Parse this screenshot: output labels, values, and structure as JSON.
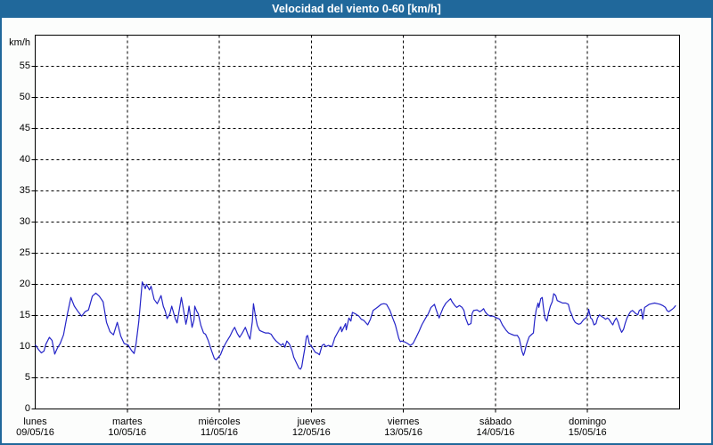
{
  "window": {
    "title": "Velocidad del viento 0-60 [km/h]"
  },
  "colors": {
    "titlebar_bg": "#20689B",
    "window_border": "#20689B",
    "content_bg": "#FCFDFC",
    "plot_bg": "#FFFFFF",
    "axis": "#000000",
    "grid": "#000000",
    "line": "#2424C8",
    "title_text": "#FFFFFF",
    "label_text": "#000000"
  },
  "chart_data": {
    "type": "line",
    "title": "Velocidad del viento 0-60 [km/h]",
    "ylabel": "km/h",
    "xlabel": "",
    "ylim": [
      0,
      60
    ],
    "xlim_hours": [
      0,
      168
    ],
    "y_ticks": [
      0,
      5,
      10,
      15,
      20,
      25,
      30,
      35,
      40,
      45,
      50,
      55
    ],
    "grid": "dashed",
    "legend_position": "none",
    "x_ticks": [
      {
        "hour": 0,
        "day": "lunes",
        "date": "09/05/16"
      },
      {
        "hour": 24,
        "day": "martes",
        "date": "10/05/16"
      },
      {
        "hour": 48,
        "day": "miércoles",
        "date": "11/05/16"
      },
      {
        "hour": 72,
        "day": "jueves",
        "date": "12/05/16"
      },
      {
        "hour": 96,
        "day": "viernes",
        "date": "13/05/16"
      },
      {
        "hour": 120,
        "day": "sábado",
        "date": "14/05/16"
      },
      {
        "hour": 144,
        "day": "domingo",
        "date": "15/05/16"
      }
    ],
    "series": [
      {
        "name": "velocidad del viento",
        "color": "#2424C8",
        "points": [
          [
            0,
            10.3
          ],
          [
            0.9,
            9.5
          ],
          [
            1.6,
            9.0
          ],
          [
            2.3,
            9.3
          ],
          [
            2.8,
            10.4
          ],
          [
            3.7,
            11.5
          ],
          [
            4.4,
            11.0
          ],
          [
            5.1,
            8.8
          ],
          [
            5.8,
            9.8
          ],
          [
            6.5,
            10.5
          ],
          [
            7.4,
            11.9
          ],
          [
            8.4,
            15.3
          ],
          [
            9.3,
            17.9
          ],
          [
            10.2,
            16.5
          ],
          [
            11.2,
            15.6
          ],
          [
            12.1,
            14.9
          ],
          [
            13,
            15.6
          ],
          [
            13.9,
            15.9
          ],
          [
            14.9,
            18.1
          ],
          [
            15.8,
            18.6
          ],
          [
            16.7,
            18.1
          ],
          [
            17.7,
            17.2
          ],
          [
            18.6,
            13.9
          ],
          [
            19.5,
            12.4
          ],
          [
            20.4,
            11.9
          ],
          [
            21.4,
            13.9
          ],
          [
            22.3,
            11.7
          ],
          [
            23.2,
            10.5
          ],
          [
            24.2,
            10.3
          ],
          [
            25.1,
            9.4
          ],
          [
            25.8,
            8.9
          ],
          [
            26.3,
            10.5
          ],
          [
            27,
            14
          ],
          [
            27.9,
            20.4
          ],
          [
            28.7,
            19.3
          ],
          [
            29,
            20
          ],
          [
            29.8,
            19.1
          ],
          [
            30.2,
            19.7
          ],
          [
            31,
            17.6
          ],
          [
            31.8,
            16.9
          ],
          [
            32.8,
            18.2
          ],
          [
            33.4,
            16.5
          ],
          [
            33.9,
            15.7
          ],
          [
            34.4,
            14.5
          ],
          [
            35.1,
            15.3
          ],
          [
            35.6,
            16.5
          ],
          [
            36.5,
            14.5
          ],
          [
            37,
            13.8
          ],
          [
            37.9,
            17.1
          ],
          [
            38.1,
            17.9
          ],
          [
            38.6,
            16.2
          ],
          [
            39.3,
            13.6
          ],
          [
            39.7,
            14.8
          ],
          [
            40.1,
            16.5
          ],
          [
            40.9,
            13.1
          ],
          [
            41.4,
            14.3
          ],
          [
            41.6,
            16.5
          ],
          [
            42.1,
            15.7
          ],
          [
            42.5,
            15.3
          ],
          [
            43.2,
            13.4
          ],
          [
            43.9,
            12.2
          ],
          [
            44.4,
            12
          ],
          [
            45.1,
            11
          ],
          [
            46,
            9.3
          ],
          [
            46.7,
            8.1
          ],
          [
            47.2,
            7.9
          ],
          [
            47.9,
            8.4
          ],
          [
            48.3,
            8.7
          ],
          [
            49,
            9.8
          ],
          [
            49.9,
            10.8
          ],
          [
            50.8,
            11.7
          ],
          [
            51.5,
            12.6
          ],
          [
            52,
            13.1
          ],
          [
            52.7,
            12.1
          ],
          [
            53.3,
            11.5
          ],
          [
            54.1,
            12.3
          ],
          [
            54.8,
            13.1
          ],
          [
            55.5,
            11.9
          ],
          [
            56,
            11.2
          ],
          [
            56.6,
            14
          ],
          [
            56.9,
            16.9
          ],
          [
            57.5,
            14.6
          ],
          [
            57.9,
            13.4
          ],
          [
            58.5,
            12.6
          ],
          [
            59.2,
            12.4
          ],
          [
            60,
            12.2
          ],
          [
            60.8,
            12.2
          ],
          [
            61.5,
            12
          ],
          [
            62.1,
            11.4
          ],
          [
            62.8,
            10.9
          ],
          [
            63.4,
            10.6
          ],
          [
            64.1,
            10.2
          ],
          [
            64.6,
            10.5
          ],
          [
            65.1,
            9.9
          ],
          [
            65.6,
            10.9
          ],
          [
            66.3,
            10.4
          ],
          [
            67,
            9.3
          ],
          [
            67.4,
            8.3
          ],
          [
            68.1,
            7.4
          ],
          [
            68.8,
            6.5
          ],
          [
            69.2,
            6.4
          ],
          [
            69.5,
            6.8
          ],
          [
            69.9,
            8.3
          ],
          [
            70.3,
            9.7
          ],
          [
            70.7,
            11.6
          ],
          [
            71,
            11.8
          ],
          [
            71.5,
            10.4
          ],
          [
            72,
            10.1
          ],
          [
            72.5,
            9.6
          ],
          [
            73,
            9.1
          ],
          [
            73.7,
            8.9
          ],
          [
            74.1,
            8.7
          ],
          [
            74.8,
            10.2
          ],
          [
            75.3,
            10.4
          ],
          [
            75.8,
            10
          ],
          [
            76.4,
            10.2
          ],
          [
            77.4,
            10
          ],
          [
            78.1,
            11.4
          ],
          [
            78.8,
            12.2
          ],
          [
            79.7,
            13.2
          ],
          [
            79.9,
            12.4
          ],
          [
            80.9,
            13.7
          ],
          [
            81.1,
            12.7
          ],
          [
            81.8,
            14.6
          ],
          [
            82.3,
            14.1
          ],
          [
            82.7,
            15.5
          ],
          [
            83.4,
            15.3
          ],
          [
            84.4,
            14.9
          ],
          [
            85,
            14.4
          ],
          [
            85.7,
            14.2
          ],
          [
            86.7,
            13.5
          ],
          [
            87.4,
            14.4
          ],
          [
            88.1,
            15.8
          ],
          [
            89.2,
            16.3
          ],
          [
            90.2,
            16.8
          ],
          [
            90.9,
            16.9
          ],
          [
            91.6,
            16.8
          ],
          [
            92.5,
            15.8
          ],
          [
            93.2,
            14.6
          ],
          [
            93.9,
            13.5
          ],
          [
            94.8,
            11.3
          ],
          [
            95.2,
            10.8
          ],
          [
            95.6,
            10.9
          ],
          [
            96.2,
            10.8
          ],
          [
            97.1,
            10.5
          ],
          [
            97.8,
            10.2
          ],
          [
            98.5,
            10.5
          ],
          [
            99.4,
            11.6
          ],
          [
            100.1,
            12.5
          ],
          [
            100.8,
            13.5
          ],
          [
            101.8,
            14.6
          ],
          [
            102.5,
            15.3
          ],
          [
            103.2,
            16.3
          ],
          [
            104.1,
            16.8
          ],
          [
            104.5,
            16
          ],
          [
            105.3,
            14.6
          ],
          [
            105.6,
            15.1
          ],
          [
            106.4,
            16.3
          ],
          [
            107.1,
            17
          ],
          [
            108.3,
            17.7
          ],
          [
            108.7,
            17.2
          ],
          [
            109.4,
            16.6
          ],
          [
            109.9,
            16.3
          ],
          [
            110.6,
            16.6
          ],
          [
            111.3,
            16.3
          ],
          [
            111.8,
            15.8
          ],
          [
            112.2,
            14.6
          ],
          [
            112.9,
            13.5
          ],
          [
            113.6,
            13.7
          ],
          [
            113.9,
            15.3
          ],
          [
            114.3,
            15.8
          ],
          [
            115.2,
            15.9
          ],
          [
            115.9,
            15.6
          ],
          [
            116.4,
            15.8
          ],
          [
            116.9,
            16.1
          ],
          [
            117.3,
            15.6
          ],
          [
            118,
            15.1
          ],
          [
            118.7,
            14.9
          ],
          [
            119.4,
            14.9
          ],
          [
            120.4,
            14.6
          ],
          [
            121.1,
            14.4
          ],
          [
            121.8,
            13.5
          ],
          [
            122.7,
            12.7
          ],
          [
            123.4,
            12.2
          ],
          [
            124.1,
            12
          ],
          [
            125,
            11.8
          ],
          [
            125.7,
            11.8
          ],
          [
            126.2,
            11.3
          ],
          [
            126.6,
            10.2
          ],
          [
            126.9,
            9.3
          ],
          [
            127.3,
            8.6
          ],
          [
            127.6,
            9.1
          ],
          [
            128,
            10.2
          ],
          [
            128.5,
            11.1
          ],
          [
            128.8,
            11.6
          ],
          [
            129.5,
            12
          ],
          [
            129.9,
            12.2
          ],
          [
            130.2,
            14.1
          ],
          [
            130.6,
            15.8
          ],
          [
            131.1,
            17
          ],
          [
            131.3,
            16.3
          ],
          [
            131.8,
            17.7
          ],
          [
            132.2,
            17.9
          ],
          [
            132.5,
            16.3
          ],
          [
            132.9,
            14.6
          ],
          [
            133.4,
            14.1
          ],
          [
            133.8,
            15.3
          ],
          [
            134.3,
            16.5
          ],
          [
            134.8,
            17.2
          ],
          [
            135.2,
            18.5
          ],
          [
            135.7,
            18.2
          ],
          [
            136.1,
            17.4
          ],
          [
            136.8,
            17.2
          ],
          [
            137.5,
            17
          ],
          [
            138.3,
            17
          ],
          [
            139,
            16.8
          ],
          [
            139.4,
            15.8
          ],
          [
            139.9,
            15.1
          ],
          [
            140.3,
            14.4
          ],
          [
            140.8,
            13.9
          ],
          [
            141.3,
            13.7
          ],
          [
            141.7,
            13.6
          ],
          [
            142.2,
            13.7
          ],
          [
            142.7,
            14.1
          ],
          [
            143.1,
            14.4
          ],
          [
            143.6,
            14.6
          ],
          [
            144.1,
            15.1
          ],
          [
            144.3,
            16
          ],
          [
            144.8,
            14.6
          ],
          [
            145.2,
            14.4
          ],
          [
            145.7,
            13.5
          ],
          [
            146.2,
            13.7
          ],
          [
            146.6,
            14.6
          ],
          [
            147.1,
            15.1
          ],
          [
            147.6,
            14.9
          ],
          [
            148.3,
            14.6
          ],
          [
            148.7,
            14.4
          ],
          [
            149.2,
            14.6
          ],
          [
            149.6,
            14.4
          ],
          [
            150.1,
            13.9
          ],
          [
            150.6,
            13.5
          ],
          [
            151,
            14.1
          ],
          [
            151.5,
            14.6
          ],
          [
            152,
            13.9
          ],
          [
            152.4,
            13
          ],
          [
            152.9,
            12.3
          ],
          [
            153.4,
            12.8
          ],
          [
            153.8,
            13.7
          ],
          [
            154.3,
            14.6
          ],
          [
            154.7,
            15.1
          ],
          [
            155.2,
            15.6
          ],
          [
            155.7,
            15.8
          ],
          [
            156.1,
            15.6
          ],
          [
            156.6,
            15.3
          ],
          [
            157.1,
            15.1
          ],
          [
            157.5,
            15.8
          ],
          [
            158,
            16
          ],
          [
            158.4,
            14.4
          ],
          [
            158.9,
            16.3
          ],
          [
            159.4,
            16.5
          ],
          [
            160.1,
            16.8
          ],
          [
            160.8,
            16.9
          ],
          [
            161.5,
            17
          ],
          [
            162.2,
            16.9
          ],
          [
            162.9,
            16.8
          ],
          [
            163.6,
            16.6
          ],
          [
            164.3,
            16.3
          ],
          [
            164.7,
            15.8
          ],
          [
            165.2,
            15.6
          ],
          [
            165.6,
            15.8
          ],
          [
            166.1,
            16
          ],
          [
            166.6,
            16.3
          ],
          [
            167,
            16.6
          ]
        ]
      }
    ]
  }
}
